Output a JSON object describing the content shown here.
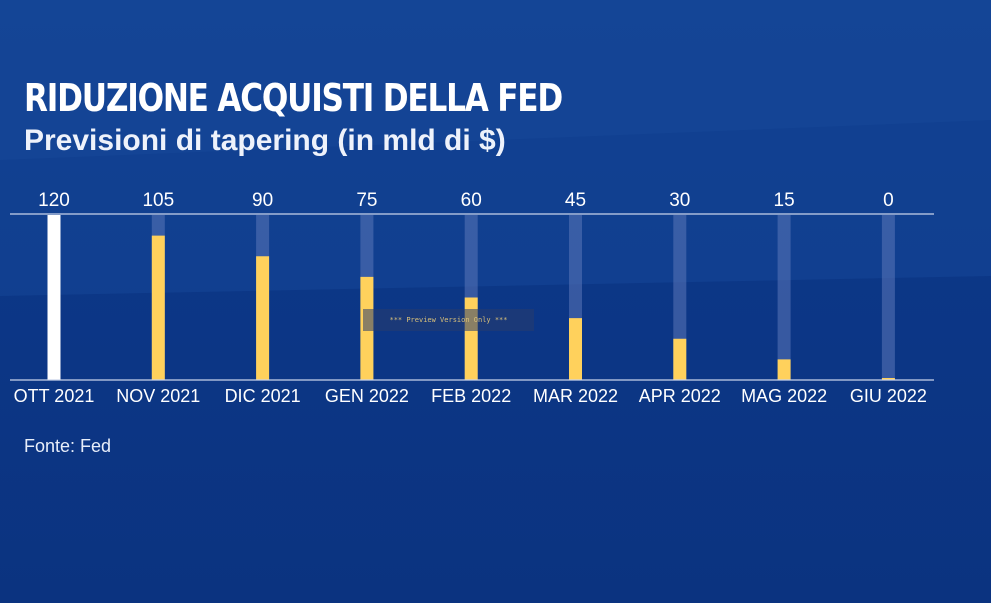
{
  "header": {
    "title": "RIDUZIONE ACQUISTI DELLA FED",
    "subtitle": "Previsioni di tapering (in mld di $)"
  },
  "footer": {
    "source": "Fonte: Fed"
  },
  "watermark": {
    "text": "*** Preview Version Only ***"
  },
  "colors": {
    "background": "#0c3685",
    "highlight_bar": "#ffffff",
    "bar": "#ffd15c",
    "track": "#5b76b8",
    "axis": "#c9d3ea",
    "text": "#ffffff"
  },
  "chart_data": {
    "type": "bar",
    "categories": [
      "OTT 2021",
      "NOV 2021",
      "DIC 2021",
      "GEN 2022",
      "FEB 2022",
      "MAR 2022",
      "APR 2022",
      "MAG 2022",
      "GIU 2022"
    ],
    "values": [
      120,
      105,
      90,
      75,
      60,
      45,
      30,
      15,
      0
    ],
    "value_labels": [
      "120",
      "105",
      "90",
      "75",
      "60",
      "45",
      "30",
      "15",
      "0"
    ],
    "highlighted_category": "OTT 2021",
    "ylim": [
      0,
      120
    ],
    "grid": false,
    "legend": "none"
  }
}
